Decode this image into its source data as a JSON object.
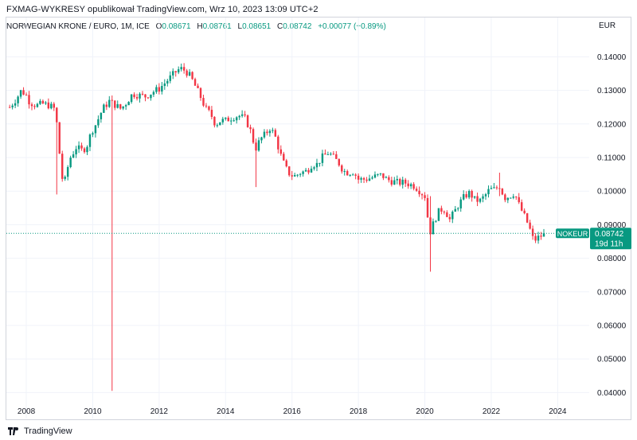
{
  "header": {
    "publisher_line": "FXMAG-WYKRESY opublikował TradingView.com, Wrz 10, 2023 13:09 UTC+2"
  },
  "legend": {
    "symbol_desc": "NORWEGIAN KRONE / EURO, 1M, ICE",
    "open_label": "O",
    "open": "0.08671",
    "high_label": "H",
    "high": "0.08761",
    "low_label": "L",
    "low": "0.08651",
    "close_label": "C",
    "close": "0.08742",
    "change": "+0.00077 (+0.89%)"
  },
  "price_scale": {
    "currency": "EUR"
  },
  "last_price_badge": {
    "ticker": "NOKEUR",
    "price": "0.08742",
    "countdown": "19d 11h"
  },
  "footer": {
    "brand": "TradingView"
  },
  "colors": {
    "up": "#089981",
    "down": "#f23645",
    "grid": "#f0f3fa",
    "axis_text": "#131722",
    "badge": "#089981"
  },
  "chart_data": {
    "type": "candlestick",
    "title": "NORWEGIAN KRONE / EURO, 1M, ICE",
    "x_range": [
      2007.4,
      2024.95
    ],
    "ylim": [
      0.037,
      0.1465
    ],
    "y_ticks": [
      "0.14000",
      "0.13000",
      "0.12000",
      "0.11000",
      "0.10000",
      "0.09000",
      "0.08000",
      "0.07000",
      "0.06000",
      "0.05000",
      "0.04000"
    ],
    "y_tick_values": [
      0.14,
      0.13,
      0.12,
      0.11,
      0.1,
      0.09,
      0.08,
      0.07,
      0.06,
      0.05,
      0.04
    ],
    "x_ticks": [
      "2008",
      "2010",
      "2012",
      "2014",
      "2016",
      "2018",
      "2020",
      "2022",
      "2024"
    ],
    "x_tick_values": [
      2008,
      2010,
      2012,
      2014,
      2016,
      2018,
      2020,
      2022,
      2024
    ],
    "last_close": 0.08742,
    "path": [
      [
        2007.5,
        0.125
      ],
      [
        2007.7,
        0.1275
      ],
      [
        2007.85,
        0.13
      ],
      [
        2008.0,
        0.1285
      ],
      [
        2008.1,
        0.1265
      ],
      [
        2008.3,
        0.1255
      ],
      [
        2008.5,
        0.126
      ],
      [
        2008.7,
        0.1255
      ],
      [
        2008.85,
        0.1245
      ],
      [
        2008.95,
        0.118
      ],
      [
        2009.05,
        0.1045
      ],
      [
        2009.15,
        0.1025
      ],
      [
        2009.3,
        0.1095
      ],
      [
        2009.5,
        0.113
      ],
      [
        2009.7,
        0.112
      ],
      [
        2009.85,
        0.114
      ],
      [
        2009.95,
        0.1175
      ],
      [
        2010.1,
        0.12
      ],
      [
        2010.3,
        0.1245
      ],
      [
        2010.5,
        0.1268
      ],
      [
        2010.7,
        0.1255
      ],
      [
        2010.85,
        0.1245
      ],
      [
        2011.0,
        0.1262
      ],
      [
        2011.2,
        0.129
      ],
      [
        2011.4,
        0.1285
      ],
      [
        2011.6,
        0.1282
      ],
      [
        2011.8,
        0.1295
      ],
      [
        2012.0,
        0.1305
      ],
      [
        2012.2,
        0.1325
      ],
      [
        2012.4,
        0.1345
      ],
      [
        2012.55,
        0.136
      ],
      [
        2012.65,
        0.1365
      ],
      [
        2012.8,
        0.1358
      ],
      [
        2012.95,
        0.134
      ],
      [
        2013.1,
        0.131
      ],
      [
        2013.25,
        0.128
      ],
      [
        2013.4,
        0.1245
      ],
      [
        2013.55,
        0.123
      ],
      [
        2013.7,
        0.1198
      ],
      [
        2013.85,
        0.121
      ],
      [
        2014.0,
        0.121
      ],
      [
        2014.2,
        0.122
      ],
      [
        2014.4,
        0.1225
      ],
      [
        2014.6,
        0.1215
      ],
      [
        2014.75,
        0.118
      ],
      [
        2014.9,
        0.1125
      ],
      [
        2015.05,
        0.1155
      ],
      [
        2015.2,
        0.117
      ],
      [
        2015.35,
        0.119
      ],
      [
        2015.5,
        0.116
      ],
      [
        2015.65,
        0.111
      ],
      [
        2015.8,
        0.107
      ],
      [
        2015.95,
        0.1048
      ],
      [
        2016.1,
        0.1045
      ],
      [
        2016.25,
        0.1055
      ],
      [
        2016.45,
        0.106
      ],
      [
        2016.6,
        0.108
      ],
      [
        2016.75,
        0.108
      ],
      [
        2016.9,
        0.11
      ],
      [
        2017.1,
        0.1115
      ],
      [
        2017.25,
        0.11
      ],
      [
        2017.4,
        0.1085
      ],
      [
        2017.55,
        0.106
      ],
      [
        2017.7,
        0.1055
      ],
      [
        2017.85,
        0.1058
      ],
      [
        2018.0,
        0.1035
      ],
      [
        2018.2,
        0.1035
      ],
      [
        2018.4,
        0.104
      ],
      [
        2018.55,
        0.1045
      ],
      [
        2018.7,
        0.1048
      ],
      [
        2018.85,
        0.1035
      ],
      [
        2019.0,
        0.103
      ],
      [
        2019.2,
        0.1025
      ],
      [
        2019.4,
        0.1025
      ],
      [
        2019.55,
        0.102
      ],
      [
        2019.7,
        0.1015
      ],
      [
        2019.85,
        0.1
      ],
      [
        2020.0,
        0.0985
      ],
      [
        2020.15,
        0.0875
      ],
      [
        2020.3,
        0.0915
      ],
      [
        2020.45,
        0.0945
      ],
      [
        2020.6,
        0.0945
      ],
      [
        2020.75,
        0.0915
      ],
      [
        2020.9,
        0.094
      ],
      [
        2021.05,
        0.0965
      ],
      [
        2021.2,
        0.0985
      ],
      [
        2021.35,
        0.0995
      ],
      [
        2021.5,
        0.0975
      ],
      [
        2021.65,
        0.097
      ],
      [
        2021.8,
        0.0985
      ],
      [
        2021.95,
        0.1005
      ],
      [
        2022.1,
        0.1005
      ],
      [
        2022.25,
        0.1015
      ],
      [
        2022.4,
        0.098
      ],
      [
        2022.55,
        0.0985
      ],
      [
        2022.7,
        0.0995
      ],
      [
        2022.85,
        0.0955
      ],
      [
        2022.95,
        0.0935
      ],
      [
        2023.05,
        0.0915
      ],
      [
        2023.15,
        0.089
      ],
      [
        2023.25,
        0.086
      ],
      [
        2023.35,
        0.0855
      ],
      [
        2023.45,
        0.0865
      ],
      [
        2023.55,
        0.0868
      ],
      [
        2023.6,
        0.0874
      ]
    ],
    "notable_wicks": [
      {
        "x": 2008.95,
        "high": 0.118,
        "low": 0.099
      },
      {
        "x": 2010.6,
        "high": 0.1285,
        "low": 0.0405
      },
      {
        "x": 2014.95,
        "high": 0.1145,
        "low": 0.1012
      },
      {
        "x": 2020.15,
        "high": 0.0985,
        "low": 0.076
      },
      {
        "x": 2022.25,
        "high": 0.1055,
        "low": 0.0985
      }
    ]
  }
}
